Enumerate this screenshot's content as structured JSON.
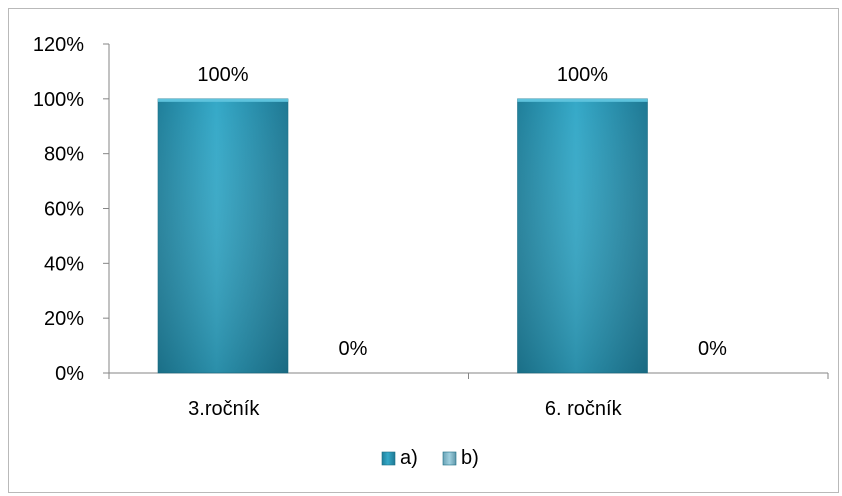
{
  "chart_data": {
    "type": "bar",
    "title": "",
    "xlabel": "",
    "ylabel": "",
    "categories": [
      "3.ročník",
      "6. ročník"
    ],
    "series": [
      {
        "name": "a)",
        "values": [
          1.0,
          1.0
        ],
        "labels": [
          "100%",
          "100%"
        ],
        "color": "#2e9bb9"
      },
      {
        "name": "b)",
        "values": [
          0.0,
          0.0
        ],
        "labels": [
          "0%",
          "0%"
        ],
        "color": "#7fb6c8"
      }
    ],
    "ylim": [
      0,
      1.2
    ],
    "yticks": [
      0,
      0.2,
      0.4,
      0.6,
      0.8,
      1.0,
      1.2
    ],
    "ytick_labels": [
      "0%",
      "20%",
      "40%",
      "60%",
      "80%",
      "100%",
      "120%"
    ],
    "grid": false,
    "legend": {
      "position": "bottom",
      "entries": [
        "a)",
        "b)"
      ]
    }
  }
}
